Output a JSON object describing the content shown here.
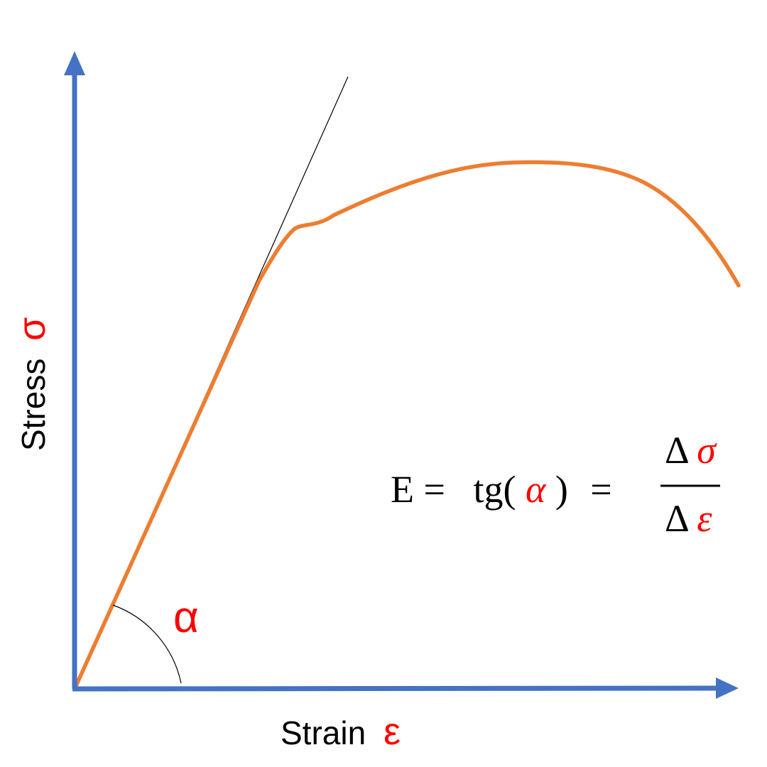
{
  "colors": {
    "axis": "#4472c4",
    "curve": "#ed7d31",
    "tangent": "#000000",
    "highlight": "#ff0000",
    "text": "#000000"
  },
  "axes": {
    "y_label": "Stress",
    "y_symbol": "σ",
    "x_label": "Strain",
    "x_symbol": "ε"
  },
  "angle": {
    "symbol": "α"
  },
  "formula": {
    "lhs": "E =",
    "func": "tg(",
    "func_arg": "α",
    "func_close": ")",
    "equals": "=",
    "numerator_delta": "Δ",
    "numerator_symbol": "σ",
    "denominator_delta": "Δ",
    "denominator_symbol": "ε"
  }
}
